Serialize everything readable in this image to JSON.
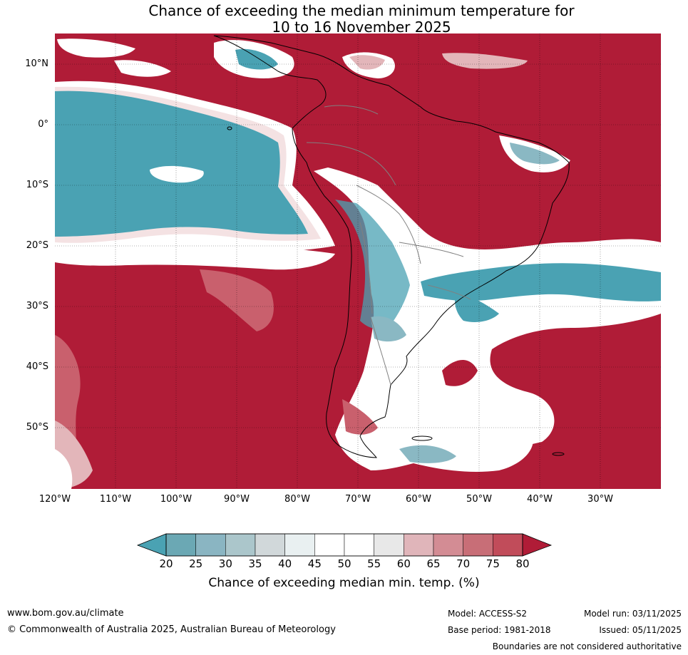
{
  "title": {
    "line1": "Chance of exceeding the median minimum temperature for",
    "line2": "10 to 16 November 2025"
  },
  "map": {
    "projection": "equirectangular",
    "lon_range": [
      -120,
      -20
    ],
    "lat_range": [
      -60,
      15
    ],
    "lat_labels": [
      "10°N",
      "0°",
      "10°S",
      "20°S",
      "30°S",
      "40°S",
      "50°S"
    ],
    "lon_labels": [
      "120°W",
      "110°W",
      "100°W",
      "90°W",
      "80°W",
      "70°W",
      "60°W",
      "50°W",
      "40°W",
      "30°W"
    ],
    "colors": {
      "very_high": "#b01c37",
      "high": "#c9606d",
      "mid_high": "#e3b6ba",
      "neutral": "#ffffff",
      "mid_low": "#d3e4e6",
      "low": "#8ab8c3",
      "very_low": "#4aa2b3",
      "coast": "#000000",
      "border": "#808080"
    }
  },
  "colorbar": {
    "ticks": [
      "20",
      "25",
      "30",
      "35",
      "40",
      "45",
      "50",
      "55",
      "60",
      "65",
      "70",
      "75",
      "80"
    ],
    "colors": [
      "#6ba8b4",
      "#8ab5c2",
      "#abc6cb",
      "#d1d8da",
      "#e9f0f1",
      "#ffffff",
      "#ffffff",
      "#e8e8e8",
      "#e0b5ba",
      "#d38c94",
      "#c86e77",
      "#c14c5a"
    ],
    "under_color": "#4aa2b3",
    "over_color": "#b01c37",
    "label": "Chance of exceeding median min. temp. (%)"
  },
  "footer": {
    "website": "www.bom.gov.au/climate",
    "copyright": "© Commonwealth of Australia 2025, Australian Bureau of Meteorology",
    "model": "Model: ACCESS-S2",
    "base_period": "Base period: 1981-2018",
    "model_run": "Model run: 03/11/2025",
    "issued": "Issued: 05/11/2025",
    "disclaimer": "Boundaries are not considered authoritative"
  }
}
